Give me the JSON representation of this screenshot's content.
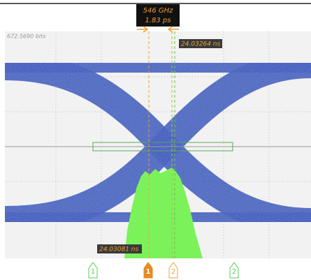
{
  "readout": {
    "frequency": "546 GHz",
    "period": "1.83 ps"
  },
  "display": {
    "scale_label": "672.5690 bits",
    "top_time": "24.03264 ns",
    "bottom_time": "24.03081 ns"
  },
  "markers": {
    "green_left": "1",
    "orange_left": "1",
    "orange_right": "2",
    "green_right": "2"
  }
}
